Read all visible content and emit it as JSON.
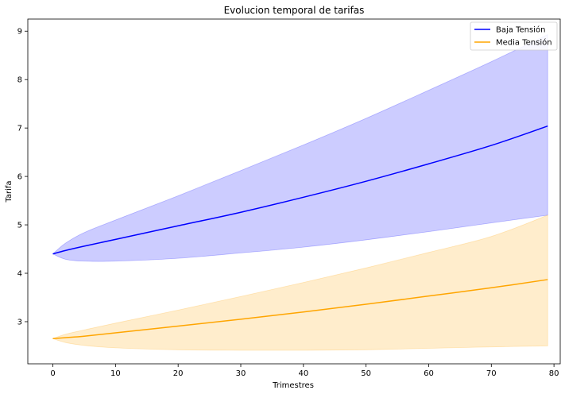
{
  "chart_data": {
    "type": "line",
    "title": "Evolucion temporal de tarifas",
    "xlabel": "Trimestres",
    "ylabel": "Tarifa",
    "xlim": [
      -4,
      81
    ],
    "ylim": [
      2.13,
      9.25
    ],
    "xticks": [
      0,
      10,
      20,
      30,
      40,
      50,
      60,
      70,
      80
    ],
    "yticks": [
      3,
      4,
      5,
      6,
      7,
      8,
      9
    ],
    "grid": false,
    "legend_position": "upper right",
    "x": [
      0,
      2,
      5,
      10,
      20,
      30,
      40,
      50,
      60,
      70,
      79
    ],
    "series": [
      {
        "name": "Baja Tensión",
        "color": "#0000ff",
        "band_color": "#0000ff",
        "band_opacity": 0.2,
        "values": [
          4.4,
          4.47,
          4.56,
          4.7,
          4.98,
          5.26,
          5.57,
          5.9,
          6.26,
          6.64,
          7.04
        ],
        "upper": [
          4.4,
          4.62,
          4.84,
          5.1,
          5.6,
          6.12,
          6.65,
          7.2,
          7.78,
          8.37,
          8.93
        ],
        "lower": [
          4.4,
          4.29,
          4.25,
          4.25,
          4.31,
          4.42,
          4.54,
          4.69,
          4.86,
          5.04,
          5.2
        ]
      },
      {
        "name": "Media Tensión",
        "color": "#ffa500",
        "band_color": "#ffa500",
        "band_opacity": 0.2,
        "values": [
          2.65,
          2.67,
          2.7,
          2.77,
          2.91,
          3.05,
          3.2,
          3.36,
          3.53,
          3.7,
          3.87
        ],
        "upper": [
          2.65,
          2.74,
          2.83,
          2.97,
          3.24,
          3.52,
          3.81,
          4.11,
          4.43,
          4.76,
          5.2
        ],
        "lower": [
          2.65,
          2.57,
          2.51,
          2.46,
          2.42,
          2.41,
          2.41,
          2.42,
          2.45,
          2.48,
          2.5
        ]
      }
    ]
  }
}
